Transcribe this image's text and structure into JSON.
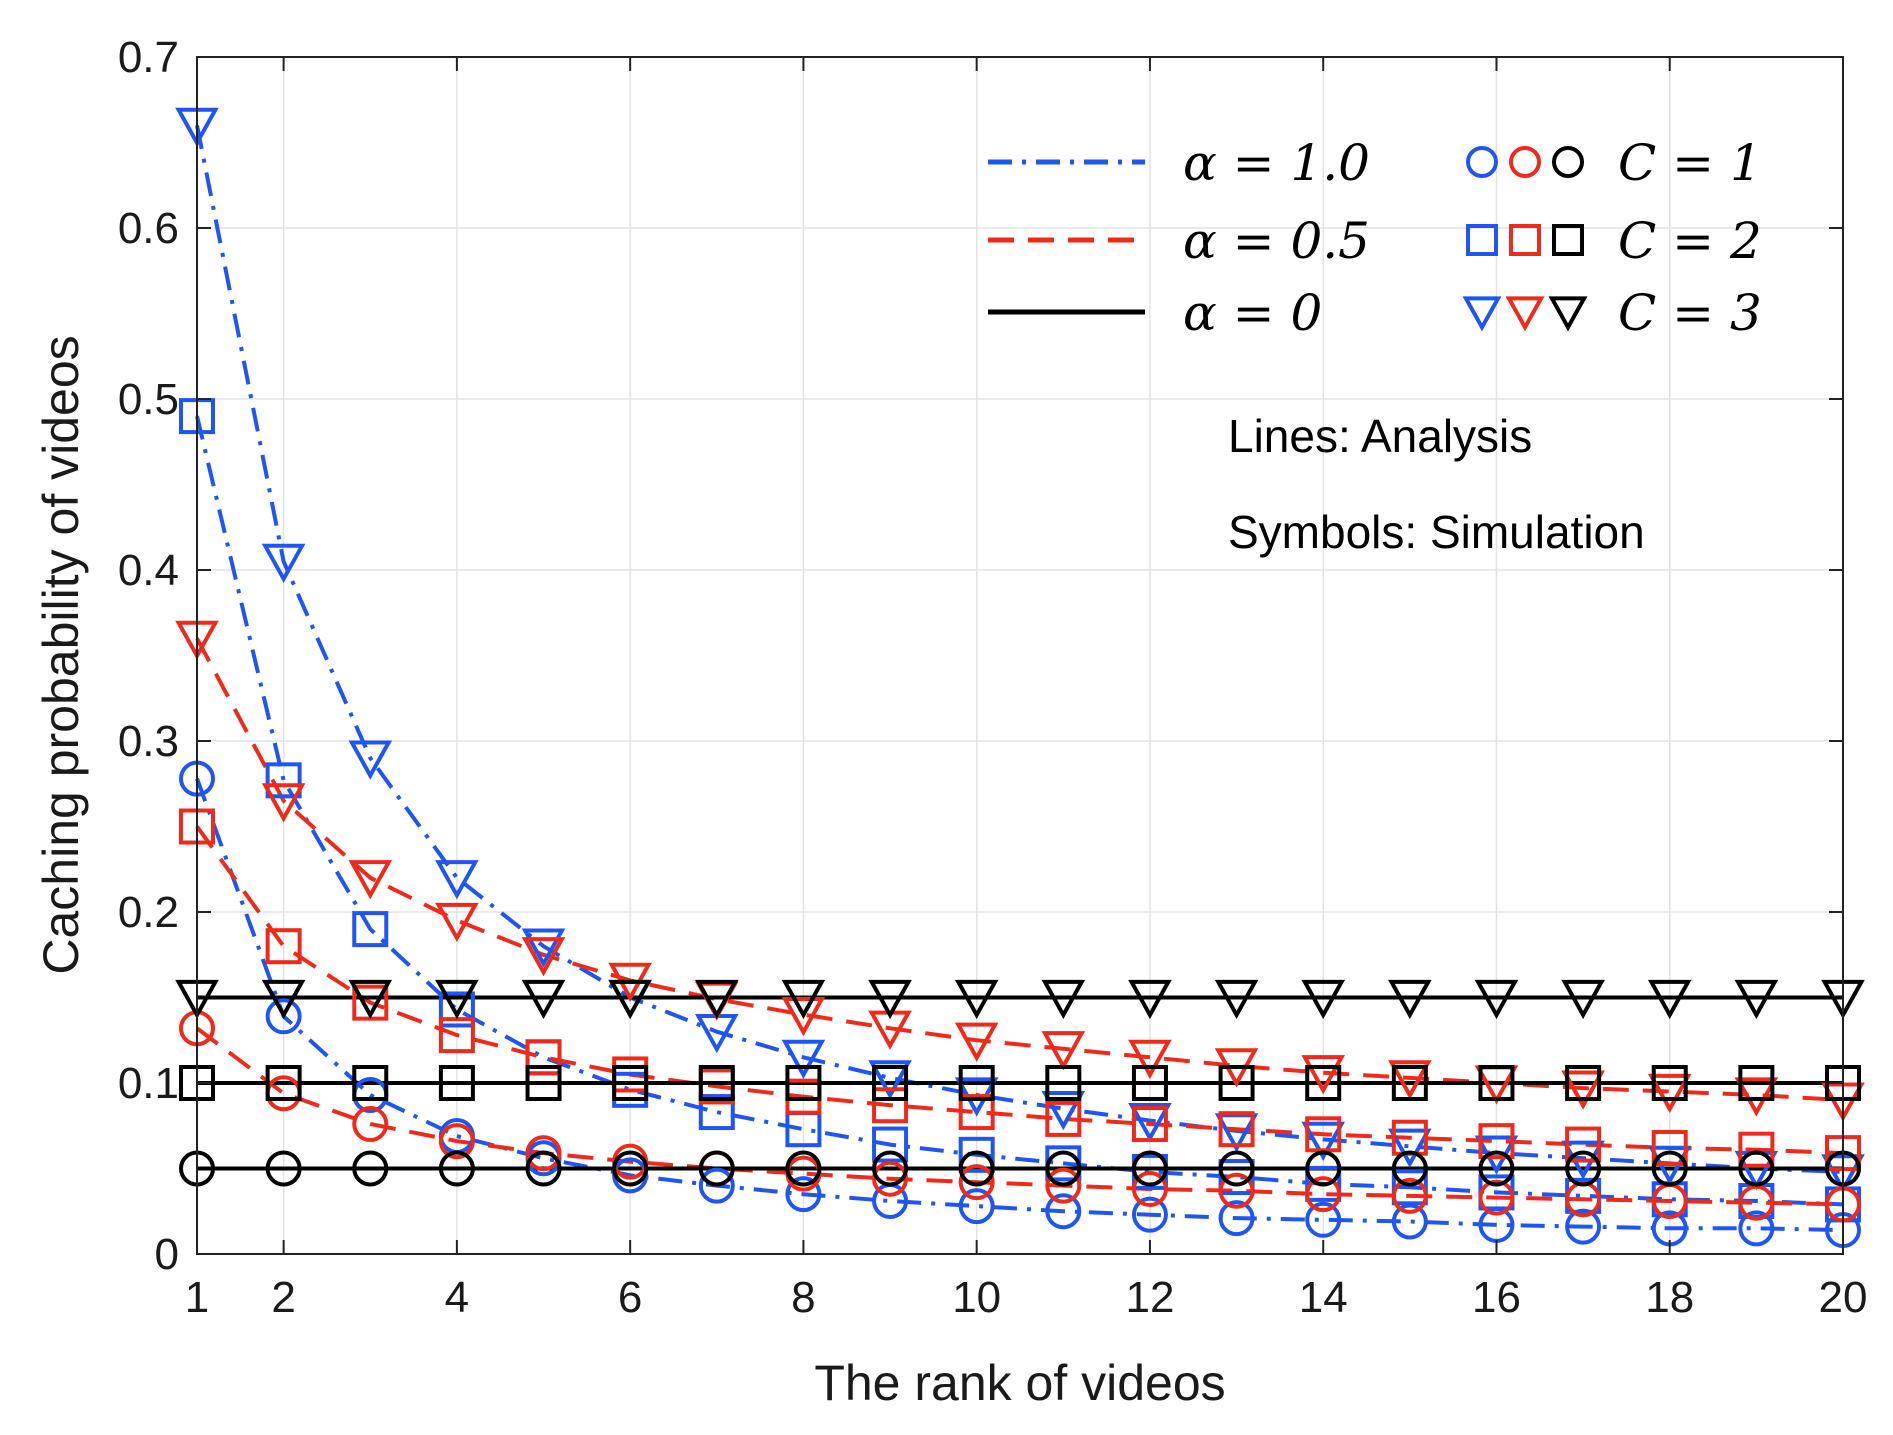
{
  "chart_data": {
    "type": "line",
    "title": "",
    "xlabel": "The rank of videos",
    "ylabel": "Caching probability of videos",
    "xlim": [
      1,
      20
    ],
    "ylim": [
      0,
      0.7
    ],
    "xticks": [
      1,
      2,
      4,
      6,
      8,
      10,
      12,
      14,
      16,
      18,
      20
    ],
    "yticks": [
      0,
      0.1,
      0.2,
      0.3,
      0.4,
      0.5,
      0.6,
      0.7
    ],
    "ytick_labels": [
      "0",
      "0.1",
      "0.2",
      "0.3",
      "0.4",
      "0.5",
      "0.6",
      "0.7"
    ],
    "grid": true,
    "legend_position": "top-right",
    "colors": {
      "alpha_1_0": "#1f55f0",
      "alpha_0_5": "#ee2a1b",
      "alpha_0": "#000000"
    },
    "line_legend": [
      {
        "label": "α = 1.0",
        "color": "#1f55f0",
        "style": "dashdot"
      },
      {
        "label": "α = 0.5",
        "color": "#ee2a1b",
        "style": "dashed"
      },
      {
        "label": "α = 0",
        "color": "#000000",
        "style": "solid"
      }
    ],
    "marker_legend": [
      {
        "label": "C = 1",
        "marker": "circle"
      },
      {
        "label": "C = 2",
        "marker": "square"
      },
      {
        "label": "C = 3",
        "marker": "triangle-down"
      }
    ],
    "annotations": [
      "Lines: Analysis",
      "Symbols: Simulation"
    ],
    "x": [
      1,
      2,
      3,
      4,
      5,
      6,
      7,
      8,
      9,
      10,
      11,
      12,
      13,
      14,
      15,
      16,
      17,
      18,
      19,
      20
    ],
    "series": [
      {
        "alpha": "1.0",
        "C": 1,
        "color": "#1f55f0",
        "style": "dashdot",
        "marker": "circle",
        "values": [
          0.278,
          0.139,
          0.093,
          0.069,
          0.056,
          0.046,
          0.04,
          0.035,
          0.031,
          0.028,
          0.025,
          0.023,
          0.021,
          0.02,
          0.019,
          0.017,
          0.016,
          0.015,
          0.015,
          0.014
        ]
      },
      {
        "alpha": "1.0",
        "C": 2,
        "color": "#1f55f0",
        "style": "dashdot",
        "marker": "square",
        "values": [
          0.49,
          0.277,
          0.19,
          0.143,
          0.115,
          0.096,
          0.083,
          0.073,
          0.064,
          0.058,
          0.053,
          0.048,
          0.045,
          0.041,
          0.039,
          0.036,
          0.034,
          0.032,
          0.031,
          0.029
        ]
      },
      {
        "alpha": "1.0",
        "C": 3,
        "color": "#1f55f0",
        "style": "dashdot",
        "marker": "triangle-down",
        "values": [
          0.66,
          0.405,
          0.29,
          0.22,
          0.18,
          0.15,
          0.13,
          0.115,
          0.103,
          0.093,
          0.085,
          0.078,
          0.072,
          0.067,
          0.063,
          0.059,
          0.056,
          0.053,
          0.05,
          0.048
        ]
      },
      {
        "alpha": "0.5",
        "C": 1,
        "color": "#ee2a1b",
        "style": "dashed",
        "marker": "circle",
        "values": [
          0.132,
          0.094,
          0.076,
          0.066,
          0.059,
          0.054,
          0.05,
          0.047,
          0.044,
          0.042,
          0.04,
          0.038,
          0.037,
          0.035,
          0.034,
          0.033,
          0.032,
          0.031,
          0.03,
          0.029
        ]
      },
      {
        "alpha": "0.5",
        "C": 2,
        "color": "#ee2a1b",
        "style": "dashed",
        "marker": "square",
        "values": [
          0.25,
          0.18,
          0.147,
          0.128,
          0.115,
          0.105,
          0.098,
          0.092,
          0.087,
          0.083,
          0.079,
          0.076,
          0.073,
          0.07,
          0.068,
          0.066,
          0.064,
          0.062,
          0.061,
          0.059
        ]
      },
      {
        "alpha": "0.5",
        "C": 3,
        "color": "#ee2a1b",
        "style": "dashed",
        "marker": "triangle-down",
        "values": [
          0.36,
          0.265,
          0.22,
          0.195,
          0.175,
          0.16,
          0.149,
          0.14,
          0.132,
          0.125,
          0.12,
          0.115,
          0.11,
          0.106,
          0.103,
          0.1,
          0.097,
          0.095,
          0.093,
          0.09
        ]
      },
      {
        "alpha": "0",
        "C": 1,
        "color": "#000000",
        "style": "solid",
        "marker": "circle",
        "values": [
          0.05,
          0.05,
          0.05,
          0.05,
          0.05,
          0.05,
          0.05,
          0.05,
          0.05,
          0.05,
          0.05,
          0.05,
          0.05,
          0.05,
          0.05,
          0.05,
          0.05,
          0.05,
          0.05,
          0.05
        ]
      },
      {
        "alpha": "0",
        "C": 2,
        "color": "#000000",
        "style": "solid",
        "marker": "square",
        "values": [
          0.1,
          0.1,
          0.1,
          0.1,
          0.1,
          0.1,
          0.1,
          0.1,
          0.1,
          0.1,
          0.1,
          0.1,
          0.1,
          0.1,
          0.1,
          0.1,
          0.1,
          0.1,
          0.1,
          0.1
        ]
      },
      {
        "alpha": "0",
        "C": 3,
        "color": "#000000",
        "style": "solid",
        "marker": "triangle-down",
        "values": [
          0.15,
          0.15,
          0.15,
          0.15,
          0.15,
          0.15,
          0.15,
          0.15,
          0.15,
          0.15,
          0.15,
          0.15,
          0.15,
          0.15,
          0.15,
          0.15,
          0.15,
          0.15,
          0.15,
          0.15
        ]
      }
    ]
  }
}
